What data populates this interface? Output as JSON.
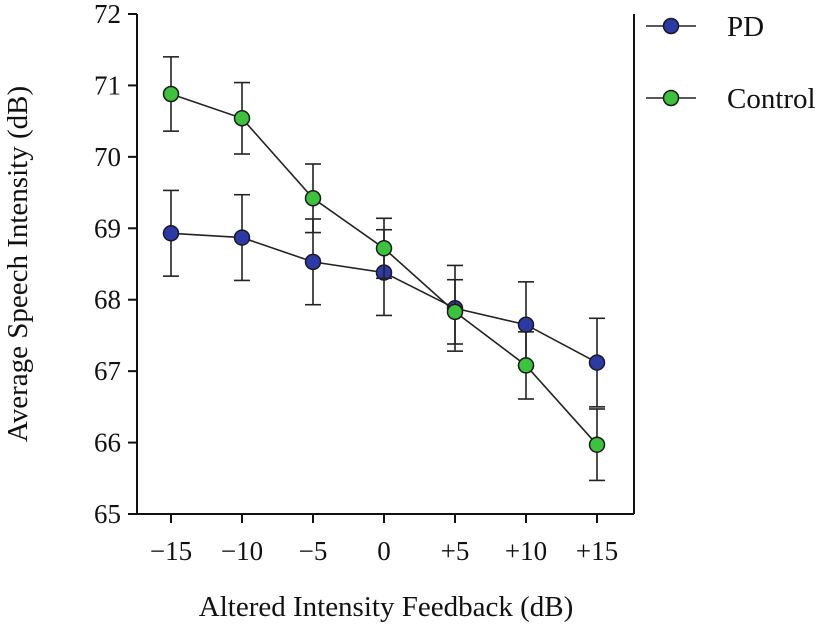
{
  "chart_data": {
    "type": "line",
    "title": "",
    "xlabel": "Altered Intensity Feedback (dB)",
    "ylabel": "Average Speech Intensity (dB)",
    "categories": [
      "−15",
      "−10",
      "−5",
      "0",
      "+5",
      "+10",
      "+15"
    ],
    "ylim": [
      65,
      72
    ],
    "yticks": [
      65,
      66,
      67,
      68,
      69,
      70,
      71,
      72
    ],
    "grid": false,
    "legend_position": "right",
    "series": [
      {
        "name": "PD",
        "color": "#2b3aa6",
        "values": [
          68.93,
          68.87,
          68.53,
          68.38,
          67.88,
          67.65,
          67.12
        ],
        "error": [
          0.6,
          0.6,
          0.6,
          0.6,
          0.6,
          0.6,
          0.62
        ]
      },
      {
        "name": "Control",
        "color": "#3cc23c",
        "values": [
          70.88,
          70.54,
          69.42,
          68.72,
          67.83,
          67.08,
          65.97
        ],
        "error": [
          0.52,
          0.5,
          0.48,
          0.42,
          0.45,
          0.47,
          0.5
        ]
      }
    ]
  }
}
